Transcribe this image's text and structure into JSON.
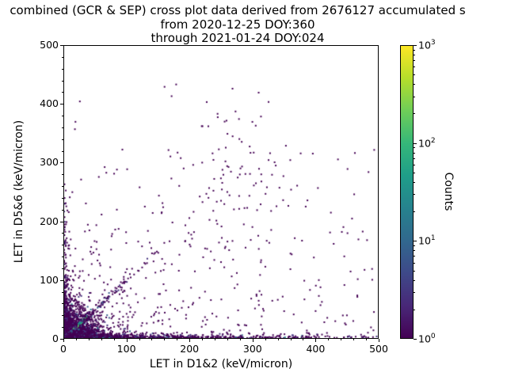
{
  "chart_data": {
    "type": "scatter",
    "subtype": "2d-histogram-cross-plot",
    "title_lines": [
      "combined (GCR & SEP) cross plot data derived from 2676127 accumulated s",
      "from 2020-12-25 DOY:360",
      "through 2021-01-24 DOY:024"
    ],
    "xlabel": "LET in D1&2 (keV/micron)",
    "ylabel": "LET in D5&6 (keV/micron)",
    "xlim": [
      0,
      500
    ],
    "ylim": [
      0,
      500
    ],
    "x_ticks": [
      0,
      100,
      200,
      300,
      400,
      500
    ],
    "y_ticks": [
      0,
      100,
      200,
      300,
      400,
      500
    ],
    "minor_tick_step": 20,
    "grid": false,
    "colorbar": {
      "label": "Counts",
      "scale": "log",
      "range": [
        1,
        1000
      ],
      "tick_exponents": [
        0,
        1,
        2,
        3
      ],
      "colormap": "viridis",
      "stops": [
        "#440154",
        "#482878",
        "#3e4989",
        "#31688e",
        "#26828e",
        "#1f9e89",
        "#35b779",
        "#6ece58",
        "#b5de2b",
        "#fde725"
      ]
    },
    "seed": 42,
    "point_clusters": [
      {
        "name": "origin-dense-blob",
        "n": 2600,
        "size": 2,
        "x": {
          "dist": "exp",
          "scale": 18,
          "max": 110
        },
        "y": {
          "dist": "exp",
          "scale": 16,
          "max": 110
        },
        "colors": [
          [
            "#440154",
            0.85
          ],
          [
            "#46327e",
            0.08
          ],
          [
            "#365c8d",
            0.04
          ],
          [
            "#277f8e",
            0.03
          ]
        ]
      },
      {
        "name": "diagonal-core-high-counts",
        "n": 260,
        "diag": true,
        "jitter": 1.3,
        "size": 2.2,
        "x": {
          "dist": "uniform",
          "min": 0,
          "max": 36
        },
        "colors": [
          [
            "#1fa187",
            0.42
          ],
          [
            "#4ac16d",
            0.25
          ],
          [
            "#277f8e",
            0.23
          ],
          [
            "#a0da39",
            0.1
          ]
        ]
      },
      {
        "name": "diagonal-tail",
        "n": 170,
        "diag": true,
        "jitter": 6,
        "size": 2,
        "x": {
          "dist": "exp",
          "scale": 45,
          "max": 150
        },
        "colors": [
          [
            "#440154",
            0.7
          ],
          [
            "#46327e",
            0.2
          ],
          [
            "#365c8d",
            0.1
          ]
        ]
      },
      {
        "name": "x-axis-band",
        "n": 900,
        "size": 2,
        "x": {
          "dist": "exp",
          "scale": 160,
          "max": 500
        },
        "y": {
          "dist": "exp",
          "scale": 2.5,
          "max": 10
        },
        "colors": [
          [
            "#440154",
            0.8
          ],
          [
            "#46327e",
            0.12
          ],
          [
            "#365c8d",
            0.05
          ],
          [
            "#277f8e",
            0.03
          ]
        ]
      },
      {
        "name": "y-axis-band",
        "n": 260,
        "size": 2,
        "x": {
          "dist": "exp",
          "scale": 3,
          "max": 12
        },
        "y": {
          "dist": "exp",
          "scale": 70,
          "max": 265
        },
        "colors": [
          [
            "#440154",
            0.85
          ],
          [
            "#46327e",
            0.15
          ]
        ]
      },
      {
        "name": "sparse-field-left-weighted",
        "n": 280,
        "size": 2,
        "x": {
          "dist": "exp",
          "scale": 220,
          "max": 500
        },
        "y": {
          "dist": "exp",
          "scale": 110,
          "max": 440
        },
        "colors": [
          [
            "#440154",
            1.0
          ]
        ]
      },
      {
        "name": "sparse-field-uniform",
        "n": 120,
        "size": 2,
        "x": {
          "dist": "uniform",
          "min": 0,
          "max": 500
        },
        "y": {
          "dist": "uniform",
          "min": 0,
          "max": 330
        },
        "colors": [
          [
            "#440154",
            1.0
          ]
        ]
      },
      {
        "name": "mid-upper-cluster",
        "n": 70,
        "size": 2,
        "x": {
          "dist": "normal",
          "mean": 275,
          "sd": 45
        },
        "y": {
          "dist": "normal",
          "mean": 270,
          "sd": 80
        },
        "colors": [
          [
            "#440154",
            1.0
          ]
        ]
      }
    ],
    "outlier_points": [
      [
        160,
        430
      ],
      [
        310,
        420
      ],
      [
        300,
        370
      ],
      [
        260,
        250
      ],
      [
        230,
        240
      ],
      [
        250,
        235
      ],
      [
        385,
        225
      ],
      [
        300,
        190
      ],
      [
        330,
        185
      ],
      [
        200,
        160
      ],
      [
        140,
        145
      ],
      [
        250,
        130
      ],
      [
        280,
        280
      ],
      [
        25,
        405
      ],
      [
        95,
        95
      ]
    ],
    "point_color_primary": "#440154",
    "background": "#ffffff"
  }
}
